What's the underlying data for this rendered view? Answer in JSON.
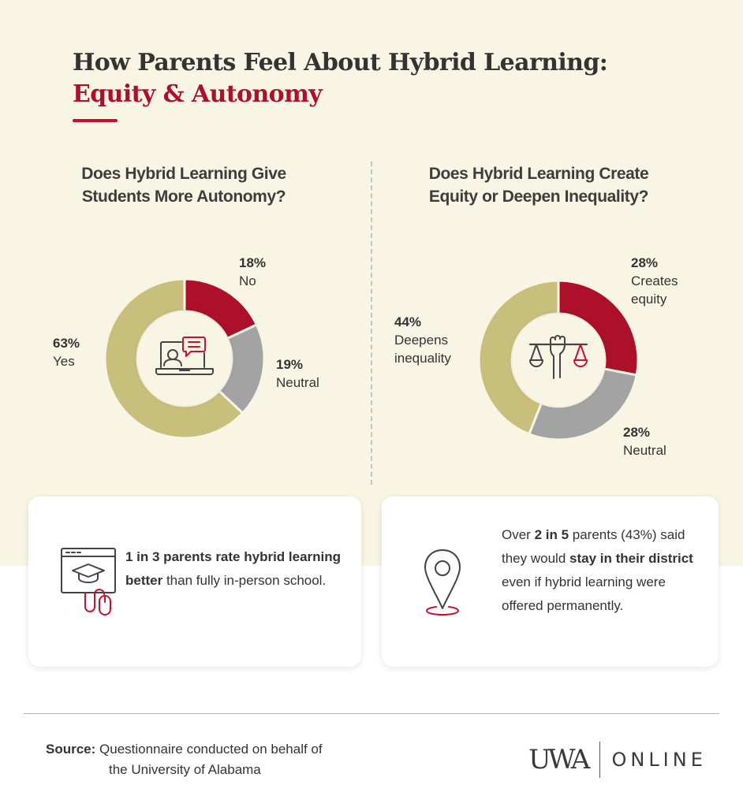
{
  "header": {
    "title_line1": "How Parents Feel About Hybrid Learning:",
    "title_line2": "Equity & Autonomy"
  },
  "colors": {
    "background_cream": "#f9f5e5",
    "red": "#ad1029",
    "gray": "#a3a3a3",
    "gold": "#c9bf7c",
    "text": "#333333"
  },
  "left_chart": {
    "question_line1": "Does Hybrid Learning Give",
    "question_line2": "Students More Autonomy?",
    "center_icon": "laptop-video-chat-icon",
    "segments": [
      {
        "pct": "18%",
        "label": "No",
        "color": "#ad1029"
      },
      {
        "pct": "19%",
        "label": "Neutral",
        "color": "#a3a3a3"
      },
      {
        "pct": "63%",
        "label": "Yes",
        "color": "#c9bf7c"
      }
    ]
  },
  "right_chart": {
    "question_line1": "Does Hybrid Learning Create",
    "question_line2": "Equity or Deepen Inequality?",
    "center_icon": "fist-scales-icon",
    "segments": [
      {
        "pct": "28%",
        "label_line1": "Creates",
        "label_line2": "equity",
        "color": "#ad1029"
      },
      {
        "pct": "28%",
        "label_line1": "Neutral",
        "label_line2": "",
        "color": "#a3a3a3"
      },
      {
        "pct": "44%",
        "label_line1": "Deepens",
        "label_line2": "inequality",
        "color": "#c9bf7c"
      }
    ]
  },
  "cards": [
    {
      "icon": "online-graduation-mouse-icon",
      "bold1": "1 in 3 parents rate hybrid learning better",
      "text1": " than fully in-person school."
    },
    {
      "icon": "location-pin-icon",
      "text1": "Over ",
      "bold1": "2 in 5",
      "text2": " parents (43%) said they would ",
      "bold2": "stay in their district",
      "text3": " even if hybrid learning were offered permanently."
    }
  ],
  "footer": {
    "source_label": "Source:",
    "source_line1": " Questionnaire conducted on behalf of",
    "source_line2": "the University of Alabama",
    "logo_left": "UWA",
    "logo_right": "ONLINE"
  },
  "chart_data": [
    {
      "type": "pie",
      "title": "Does Hybrid Learning Give Students More Autonomy?",
      "categories": [
        "No",
        "Neutral",
        "Yes"
      ],
      "values": [
        18,
        19,
        63
      ],
      "colors": [
        "#ad1029",
        "#a3a3a3",
        "#c9bf7c"
      ],
      "donut": true,
      "unit": "%"
    },
    {
      "type": "pie",
      "title": "Does Hybrid Learning Create Equity or Deepen Inequality?",
      "categories": [
        "Creates equity",
        "Neutral",
        "Deepens inequality"
      ],
      "values": [
        28,
        28,
        44
      ],
      "colors": [
        "#ad1029",
        "#a3a3a3",
        "#c9bf7c"
      ],
      "donut": true,
      "unit": "%"
    }
  ]
}
